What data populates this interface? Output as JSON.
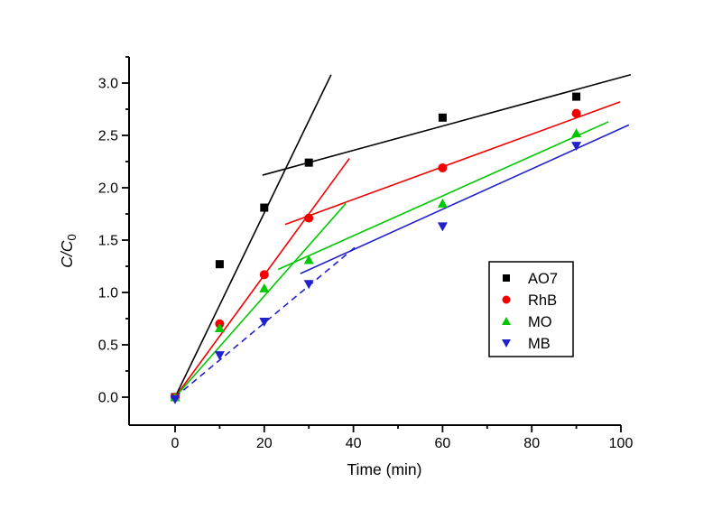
{
  "chart_data": {
    "type": "scatter",
    "title": "",
    "xlabel": "Time (min)",
    "ylabel_main": "C/C",
    "ylabel_sub": "0",
    "background_color": "#ffffff",
    "axis_color": "#000000",
    "xlim": [
      -10.3,
      100
    ],
    "ylim": [
      -0.27,
      3.25
    ],
    "grid": false,
    "x_major_ticks": [
      {
        "v": 0,
        "label": "0"
      },
      {
        "v": 20,
        "label": "20"
      },
      {
        "v": 40,
        "label": "40"
      },
      {
        "v": 60,
        "label": "60"
      },
      {
        "v": 80,
        "label": "80"
      },
      {
        "v": 100,
        "label": "100"
      }
    ],
    "x_minor_ticks": [
      10,
      30,
      50,
      70,
      90
    ],
    "y_major_ticks": [
      {
        "v": 0.0,
        "label": "0.0"
      },
      {
        "v": 0.5,
        "label": "0.5"
      },
      {
        "v": 1.0,
        "label": "1.0"
      },
      {
        "v": 1.5,
        "label": "1.5"
      },
      {
        "v": 2.0,
        "label": "2.0"
      },
      {
        "v": 2.5,
        "label": "2.5"
      },
      {
        "v": 3.0,
        "label": "3.0"
      }
    ],
    "y_minor_ticks": [
      0.25,
      0.75,
      1.25,
      1.75,
      2.25,
      2.75,
      3.25
    ],
    "x": [
      0,
      10,
      20,
      30,
      60,
      90
    ],
    "series": [
      {
        "name": "AO7",
        "color": "#000000",
        "marker": "square",
        "values": [
          0.0,
          1.27,
          1.81,
          2.24,
          2.67,
          2.87
        ]
      },
      {
        "name": "RhB",
        "color": "#f20000",
        "marker": "circle",
        "values": [
          0.0,
          0.7,
          1.17,
          1.71,
          2.19,
          2.71
        ]
      },
      {
        "name": "MO",
        "color": "#00c800",
        "marker": "triangle-up",
        "values": [
          0.0,
          0.66,
          1.04,
          1.31,
          1.85,
          2.52
        ]
      },
      {
        "name": "MB",
        "color": "#2222cc",
        "marker": "triangle-down",
        "values": [
          -0.02,
          0.4,
          0.72,
          1.08,
          1.63,
          2.4
        ]
      }
    ],
    "fit_lines": [
      {
        "series": "AO7",
        "color": "#000000",
        "style": "solid",
        "x1": 0,
        "y1": 0,
        "x2": 35.0,
        "y2": 3.08
      },
      {
        "series": "AO7",
        "color": "#000000",
        "style": "solid",
        "x1": 19.6,
        "y1": 2.12,
        "x2": 102.2,
        "y2": 3.08
      },
      {
        "series": "RhB",
        "color": "#f20000",
        "style": "solid",
        "x1": 0,
        "y1": 0,
        "x2": 39.1,
        "y2": 2.28
      },
      {
        "series": "RhB",
        "color": "#f20000",
        "style": "solid",
        "x1": 24.7,
        "y1": 1.65,
        "x2": 99.8,
        "y2": 2.82
      },
      {
        "series": "MO",
        "color": "#00c800",
        "style": "solid",
        "x1": 0,
        "y1": 0,
        "x2": 38.3,
        "y2": 1.85
      },
      {
        "series": "MO",
        "color": "#00c800",
        "style": "solid",
        "x1": 23.1,
        "y1": 1.22,
        "x2": 97.2,
        "y2": 2.63
      },
      {
        "series": "MB",
        "color": "#2222cc",
        "style": "dashed",
        "x1": 0,
        "y1": 0,
        "x2": 40.9,
        "y2": 1.45
      },
      {
        "series": "MB",
        "color": "#2222cc",
        "style": "solid",
        "x1": 28.1,
        "y1": 1.18,
        "x2": 101.8,
        "y2": 2.6
      }
    ],
    "legend": {
      "position": "right-middle",
      "border_color": "#000000",
      "entries": [
        "AO7",
        "RhB",
        "MO",
        "MB"
      ]
    }
  }
}
